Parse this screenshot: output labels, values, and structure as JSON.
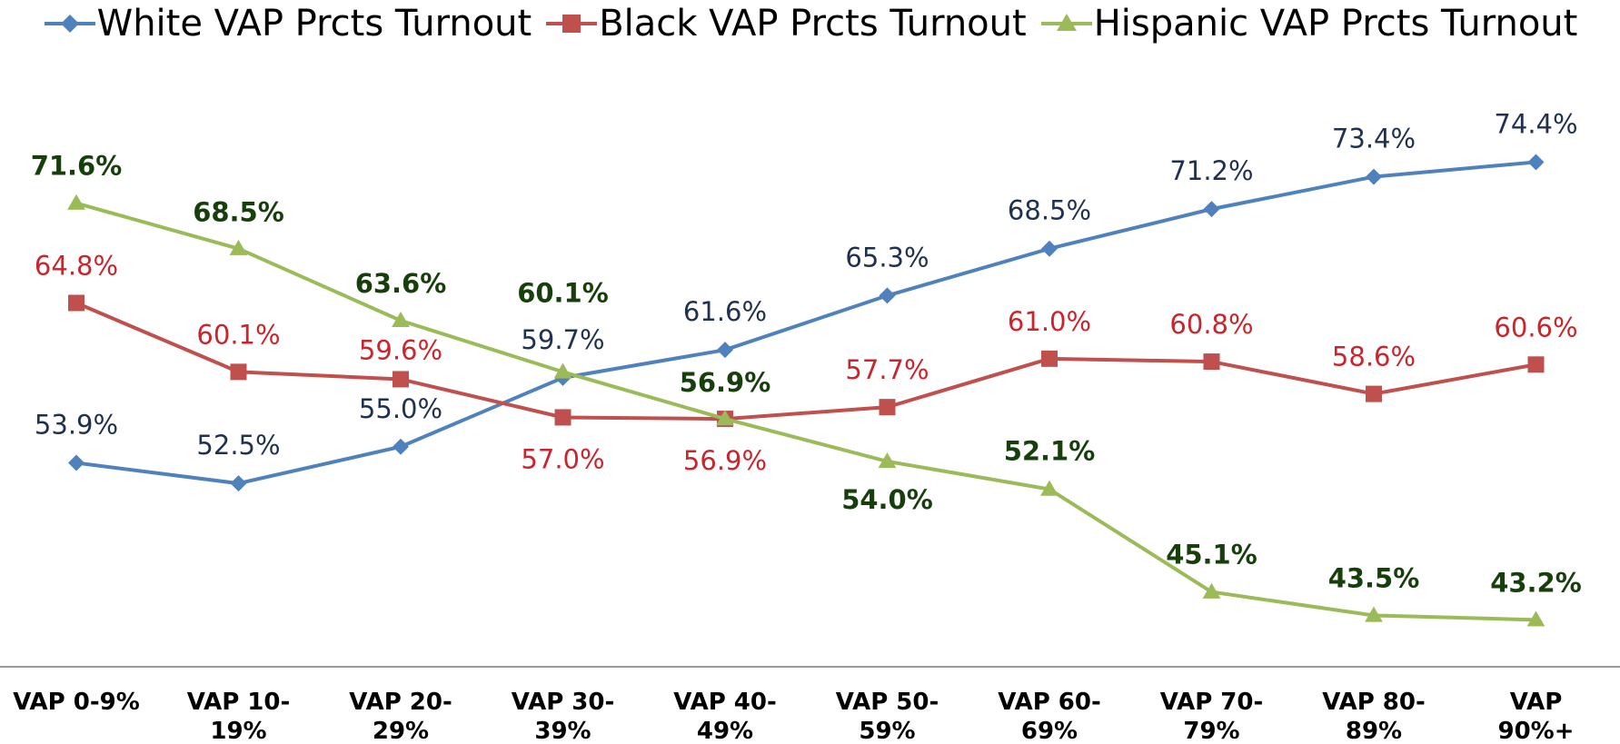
{
  "chart_data": {
    "type": "line",
    "categories": [
      "VAP 0-9%",
      "VAP 10-19%",
      "VAP 20-29%",
      "VAP 30-39%",
      "VAP 40-49%",
      "VAP 50-59%",
      "VAP 60-69%",
      "VAP 70-79%",
      "VAP 80-89%",
      "VAP 90%+"
    ],
    "series": [
      {
        "name": "White VAP Prcts Turnout",
        "color": "#4f81bd",
        "marker": "diamond",
        "label_color": "#1f3050",
        "values": [
          53.9,
          52.5,
          55.0,
          59.7,
          61.6,
          65.3,
          68.5,
          71.2,
          73.4,
          74.4
        ],
        "value_labels": [
          "53.9%",
          "52.5%",
          "55.0%",
          "59.7%",
          "61.6%",
          "65.3%",
          "68.5%",
          "71.2%",
          "73.4%",
          "74.4%"
        ]
      },
      {
        "name": "Black VAP Prcts Turnout",
        "color": "#c0504d",
        "marker": "square",
        "label_color": "#c8252c",
        "values": [
          64.8,
          60.1,
          59.6,
          57.0,
          56.9,
          57.7,
          61.0,
          60.8,
          58.6,
          60.6
        ],
        "value_labels": [
          "64.8%",
          "60.1%",
          "59.6%",
          "57.0%",
          "56.9%",
          "57.7%",
          "61.0%",
          "60.8%",
          "58.6%",
          "60.6%"
        ]
      },
      {
        "name": "Hispanic VAP Prcts Turnout",
        "color": "#9bbb59",
        "marker": "triangle",
        "label_color": "#173f0c",
        "values": [
          71.6,
          68.5,
          63.6,
          60.1,
          56.9,
          54.0,
          52.1,
          45.1,
          43.5,
          43.2
        ],
        "value_labels": [
          "71.6%",
          "68.5%",
          "63.6%",
          "60.1%",
          "56.9%",
          "54.0%",
          "52.1%",
          "45.1%",
          "43.5%",
          "43.2%"
        ]
      }
    ],
    "ylim": [
      40,
      80
    ],
    "legend": "top"
  }
}
